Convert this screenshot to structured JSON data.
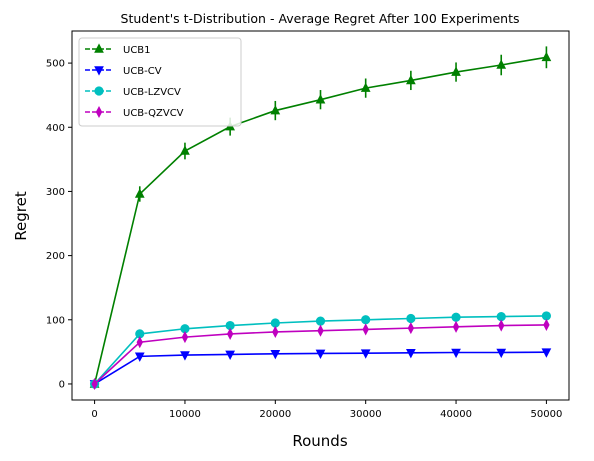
{
  "chart_data": {
    "type": "line",
    "title": "Student's t-Distribution - Average Regret After 100 Experiments",
    "xlabel": "Rounds",
    "ylabel": "Regret",
    "xlim": [
      -2500,
      52500
    ],
    "ylim": [
      -25,
      550
    ],
    "xticks": [
      0,
      10000,
      20000,
      30000,
      40000,
      50000
    ],
    "yticks": [
      0,
      100,
      200,
      300,
      400,
      500
    ],
    "legend_position": "upper left",
    "grid": false,
    "x": [
      0,
      5000,
      10000,
      15000,
      20000,
      25000,
      30000,
      35000,
      40000,
      45000,
      50000
    ],
    "series": [
      {
        "name": "UCB1",
        "color": "#008000",
        "marker": "triangle-up",
        "values": [
          0,
          296,
          363,
          401,
          426,
          443,
          461,
          473,
          486,
          497,
          509
        ],
        "errors": [
          0,
          12,
          13,
          14,
          15,
          15,
          15,
          15,
          15,
          16,
          17
        ]
      },
      {
        "name": "UCB-CV",
        "color": "#0000ff",
        "marker": "triangle-down",
        "values": [
          0,
          43,
          45,
          46,
          47,
          47.5,
          48,
          48.5,
          49,
          49,
          49.5
        ],
        "errors": [
          0,
          2,
          2,
          2,
          2,
          2,
          2,
          2,
          2,
          2,
          2
        ]
      },
      {
        "name": "UCB-LZVCV",
        "color": "#00bfbf",
        "marker": "circle",
        "values": [
          0,
          78,
          86,
          91,
          95,
          98,
          100,
          102,
          104,
          105,
          106
        ],
        "errors": [
          0,
          2,
          2,
          2,
          2,
          2,
          2,
          2,
          2,
          2,
          2
        ]
      },
      {
        "name": "UCB-QZVCV",
        "color": "#bf00bf",
        "marker": "diamond",
        "values": [
          0,
          65,
          73,
          78,
          81,
          83,
          85,
          87,
          89,
          91,
          92
        ],
        "errors": [
          0,
          2,
          2,
          2,
          2,
          2,
          2,
          2,
          2,
          2,
          2
        ]
      }
    ]
  }
}
